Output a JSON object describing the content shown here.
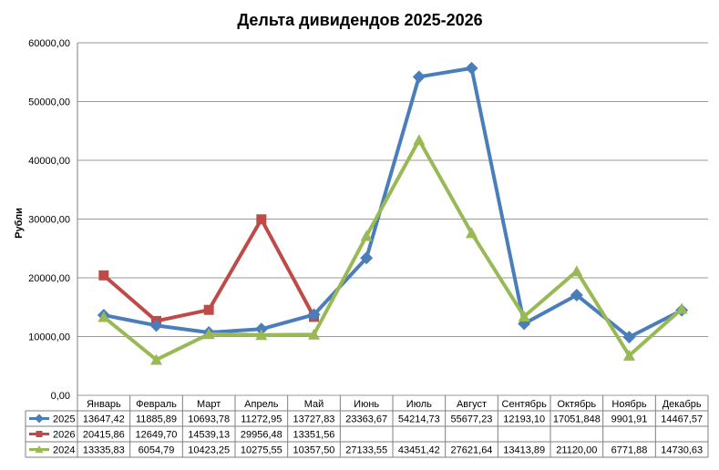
{
  "chart_data": {
    "type": "line",
    "title": "Дельта дивидендов 2025-2026",
    "ylabel": "Рубли",
    "xlabel": "",
    "ylim": [
      0,
      60000
    ],
    "yticks": [
      "0,00",
      "10000,00",
      "20000,00",
      "30000,00",
      "40000,00",
      "50000,00",
      "60000,00"
    ],
    "grid": "horizontal",
    "legend": "data table",
    "categories": [
      "Январь",
      "Февраль",
      "Март",
      "Апрель",
      "Май",
      "Июнь",
      "Июль",
      "Август",
      "Сентябрь",
      "Октябрь",
      "Ноябрь",
      "Декабрь"
    ],
    "series": [
      {
        "name": "2025",
        "color": "#4a7ebb",
        "marker": "diamond",
        "values": [
          13647.42,
          11885.89,
          10693.78,
          11272.95,
          13727.83,
          23363.67,
          54214.73,
          55677.23,
          12193.1,
          17051.848,
          9901.91,
          14467.57
        ],
        "labels": [
          "13647,42",
          "11885,89",
          "10693,78",
          "11272,95",
          "13727,83",
          "23363,67",
          "54214,73",
          "55677,23",
          "12193,10",
          "17051,848",
          "9901,91",
          "14467,57"
        ]
      },
      {
        "name": "2026",
        "color": "#be4b48",
        "marker": "square",
        "values": [
          20415.86,
          12649.7,
          14539.13,
          29956.48,
          13351.56,
          null,
          null,
          null,
          null,
          null,
          null,
          null
        ],
        "labels": [
          "20415,86",
          "12649,70",
          "14539,13",
          "29956,48",
          "13351,56",
          "",
          "",
          "",
          "",
          "",
          "",
          ""
        ]
      },
      {
        "name": "2024",
        "color": "#98b954",
        "marker": "triangle",
        "values": [
          13335.83,
          6054.79,
          10423.25,
          10275.55,
          10357.5,
          27133.55,
          43451.42,
          27621.64,
          13413.89,
          21120.0,
          6771.88,
          14730.63
        ],
        "labels": [
          "13335,83",
          "6054,79",
          "10423,25",
          "10275,55",
          "10357,50",
          "27133,55",
          "43451,42",
          "27621,64",
          "13413,89",
          "21120,00",
          "6771,88",
          "14730,63"
        ]
      }
    ]
  }
}
